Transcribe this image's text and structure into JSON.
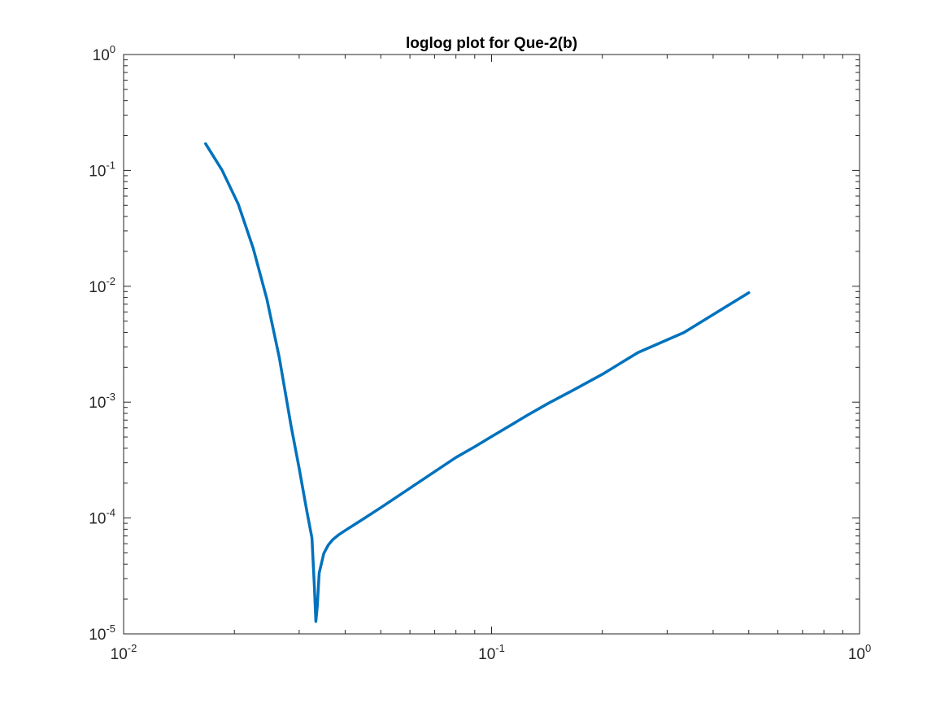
{
  "chart_data": {
    "type": "line",
    "title": "loglog plot for Que-2(b)",
    "xlabel": "",
    "ylabel": "",
    "xscale": "log",
    "yscale": "log",
    "xlim": [
      0.01,
      1
    ],
    "ylim": [
      1e-05,
      1
    ],
    "x_ticks": [
      {
        "base": "10",
        "exp": "-2",
        "value": 0.01
      },
      {
        "base": "10",
        "exp": "-1",
        "value": 0.1
      },
      {
        "base": "10",
        "exp": "0",
        "value": 1
      }
    ],
    "y_ticks": [
      {
        "base": "10",
        "exp": "-5",
        "value": 1e-05
      },
      {
        "base": "10",
        "exp": "-4",
        "value": 0.0001
      },
      {
        "base": "10",
        "exp": "-3",
        "value": 0.001
      },
      {
        "base": "10",
        "exp": "-2",
        "value": 0.01
      },
      {
        "base": "10",
        "exp": "-1",
        "value": 0.1
      },
      {
        "base": "10",
        "exp": "0",
        "value": 1
      }
    ],
    "grid": false,
    "box": true,
    "series": [
      {
        "color": "#0072bd",
        "x": [
          0.0167,
          0.0185,
          0.0205,
          0.0225,
          0.0245,
          0.0265,
          0.0285,
          0.03,
          0.0315,
          0.0325,
          0.033,
          0.0333,
          0.0336,
          0.034,
          0.035,
          0.036,
          0.037,
          0.0385,
          0.04,
          0.045,
          0.05,
          0.06,
          0.07,
          0.08,
          0.09,
          0.1,
          0.1111,
          0.125,
          0.1429,
          0.1667,
          0.2,
          0.25,
          0.3333,
          0.5
        ],
        "y": [
          0.17,
          0.101,
          0.051,
          0.0213,
          0.0078,
          0.00241,
          0.00063,
          0.000268,
          0.000113,
          6.71e-05,
          2.52e-05,
          1.28e-05,
          1.73e-05,
          3.35e-05,
          4.95e-05,
          5.85e-05,
          6.5e-05,
          7.2e-05,
          7.8e-05,
          9.9e-05,
          0.000123,
          0.000181,
          0.000251,
          0.000333,
          0.000412,
          0.000505,
          0.000615,
          0.00077,
          0.00098,
          0.00127,
          0.00174,
          0.00268,
          0.00399,
          0.0088
        ]
      }
    ]
  }
}
